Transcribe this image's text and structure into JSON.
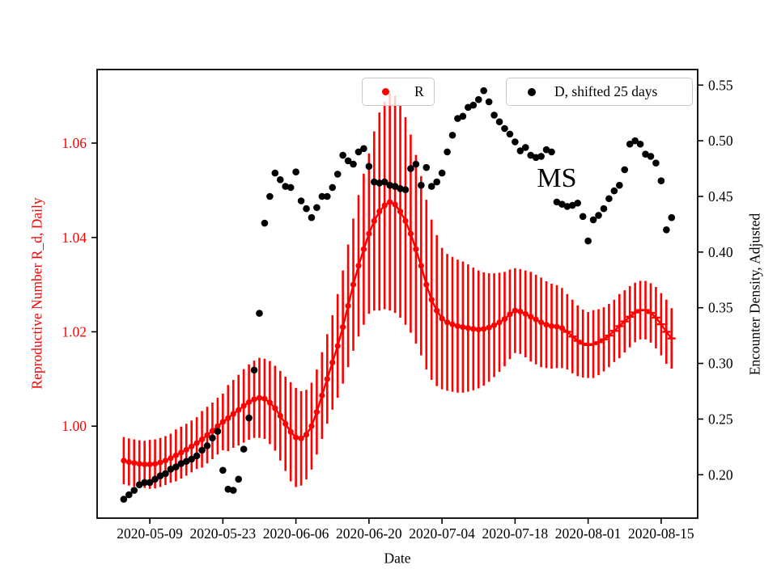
{
  "figure": {
    "background": "#ffffff"
  },
  "chart_data": {
    "type": "line",
    "subtype": "errorbar-line with secondary scatter series",
    "title": "",
    "xlabel": "Date",
    "annotation": {
      "text": "MS",
      "day": 83,
      "r_value": 1.0525
    },
    "legend_position": "upper center, two boxes",
    "grid": false,
    "left_axis": {
      "label": "Reproductive Number R_d, Daily",
      "color": "#ff0000",
      "tick_labels": [
        "1.00",
        "1.02",
        "1.04",
        "1.06"
      ],
      "tick_values": [
        1.0,
        1.02,
        1.04,
        1.06
      ],
      "range": [
        0.9805,
        1.0756
      ]
    },
    "right_axis": {
      "label": "Encounter Density, Adjusted",
      "color": "#000000",
      "tick_labels": [
        "0.20",
        "0.25",
        "0.30",
        "0.35",
        "0.40",
        "0.45",
        "0.50",
        "0.55"
      ],
      "tick_values": [
        0.2,
        0.25,
        0.3,
        0.35,
        0.4,
        0.45,
        0.5,
        0.55
      ],
      "range": [
        0.161,
        0.564
      ]
    },
    "x_axis": {
      "start_date": "2020-05-04",
      "unit": "days since start_date",
      "tick_days": [
        5,
        19,
        33,
        47,
        61,
        75,
        89,
        103
      ],
      "tick_labels": [
        "2020-05-09",
        "2020-05-23",
        "2020-06-06",
        "2020-06-20",
        "2020-07-04",
        "2020-07-18",
        "2020-08-01",
        "2020-08-15"
      ],
      "range_days": [
        -5.1,
        110
      ]
    },
    "legend": [
      {
        "label": "R",
        "color": "#ff0000"
      },
      {
        "label": "D, shifted 25 days",
        "color": "#000000"
      }
    ],
    "series": [
      {
        "name": "R",
        "axis": "left",
        "color": "#ff0000",
        "style": "line+dots+errorbars",
        "dot_marker_until_day": 84,
        "start_day": 0,
        "values": [
          0.9927,
          0.9924,
          0.9922,
          0.992,
          0.9919,
          0.9919,
          0.992,
          0.9923,
          0.9927,
          0.9932,
          0.9938,
          0.9944,
          0.995,
          0.9957,
          0.9964,
          0.9972,
          0.9981,
          0.999,
          1.0,
          1.0009,
          1.0017,
          1.0026,
          1.0034,
          1.0043,
          1.0051,
          1.0057,
          1.006,
          1.0058,
          1.005,
          1.0038,
          1.0022,
          1.0005,
          0.9988,
          0.9976,
          0.9974,
          0.9982,
          1.0,
          1.003,
          1.0065,
          1.01,
          1.0135,
          1.017,
          1.021,
          1.0255,
          1.03,
          1.034,
          1.0375,
          1.0408,
          1.0435,
          1.0455,
          1.0468,
          1.0475,
          1.047,
          1.0455,
          1.0435,
          1.0408,
          1.0375,
          1.034,
          1.03,
          1.0268,
          1.0245,
          1.0228,
          1.022,
          1.0216,
          1.0212,
          1.021,
          1.0208,
          1.0206,
          1.0205,
          1.0206,
          1.0209,
          1.0214,
          1.022,
          1.0227,
          1.0237,
          1.0245,
          1.0243,
          1.0238,
          1.0232,
          1.0226,
          1.022,
          1.0215,
          1.0212,
          1.0211,
          1.0208,
          1.02,
          1.019,
          1.0181,
          1.0175,
          1.0172,
          1.0174,
          1.0178,
          1.0184,
          1.0192,
          1.0202,
          1.0212,
          1.0222,
          1.0232,
          1.0241,
          1.0246,
          1.0246,
          1.024,
          1.023,
          1.0216,
          1.02,
          1.0186
        ],
        "errors": [
          0.005,
          0.005,
          0.005,
          0.005,
          0.005,
          0.0052,
          0.0052,
          0.0052,
          0.0052,
          0.0052,
          0.0055,
          0.0055,
          0.0055,
          0.0055,
          0.0055,
          0.006,
          0.006,
          0.006,
          0.006,
          0.006,
          0.007,
          0.0072,
          0.0075,
          0.0078,
          0.008,
          0.0082,
          0.0085,
          0.0085,
          0.0088,
          0.009,
          0.0095,
          0.01,
          0.0105,
          0.0105,
          0.01,
          0.0095,
          0.0092,
          0.009,
          0.0092,
          0.0095,
          0.01,
          0.011,
          0.012,
          0.013,
          0.014,
          0.015,
          0.016,
          0.017,
          0.019,
          0.021,
          0.022,
          0.023,
          0.023,
          0.0225,
          0.022,
          0.021,
          0.02,
          0.019,
          0.018,
          0.017,
          0.016,
          0.015,
          0.0145,
          0.0143,
          0.0141,
          0.0139,
          0.0135,
          0.013,
          0.0125,
          0.012,
          0.0115,
          0.011,
          0.0105,
          0.01,
          0.0095,
          0.009,
          0.009,
          0.0092,
          0.0095,
          0.0095,
          0.0095,
          0.0092,
          0.009,
          0.0088,
          0.0085,
          0.008,
          0.0078,
          0.0075,
          0.0072,
          0.007,
          0.0072,
          0.007,
          0.0068,
          0.0067,
          0.0066,
          0.0068,
          0.0066,
          0.0065,
          0.0063,
          0.0062,
          0.0062,
          0.0063,
          0.0065,
          0.0066,
          0.0068,
          0.0064
        ]
      },
      {
        "name": "D, shifted 25 days",
        "axis": "right",
        "color": "#000000",
        "style": "scatter",
        "start_day": 0,
        "values": [
          0.178,
          0.182,
          0.186,
          0.191,
          0.193,
          0.193,
          0.196,
          0.199,
          0.201,
          0.205,
          0.207,
          0.21,
          0.212,
          0.214,
          0.217,
          0.222,
          0.226,
          0.233,
          0.239,
          0.204,
          0.187,
          0.186,
          0.196,
          0.223,
          0.251,
          0.294,
          0.345,
          0.426,
          0.45,
          0.471,
          0.465,
          0.459,
          0.458,
          0.472,
          0.446,
          0.439,
          0.431,
          0.44,
          0.45,
          0.45,
          0.458,
          0.47,
          0.487,
          0.482,
          0.479,
          0.49,
          0.493,
          0.477,
          0.463,
          0.462,
          0.463,
          0.46,
          0.459,
          0.457,
          0.456,
          0.475,
          0.479,
          0.46,
          0.476,
          0.459,
          0.463,
          0.471,
          0.49,
          0.505,
          0.52,
          0.522,
          0.53,
          0.532,
          0.537,
          0.545,
          0.535,
          0.523,
          0.517,
          0.511,
          0.506,
          0.499,
          0.491,
          0.494,
          0.487,
          0.485,
          0.486,
          0.492,
          0.49,
          0.445,
          0.443,
          0.441,
          0.442,
          0.444,
          0.432,
          0.41,
          0.429,
          0.433,
          0.439,
          0.448,
          0.455,
          0.46,
          0.474,
          0.497,
          0.5,
          0.497,
          0.488,
          0.486,
          0.48,
          0.464,
          0.42,
          0.431
        ]
      }
    ]
  }
}
